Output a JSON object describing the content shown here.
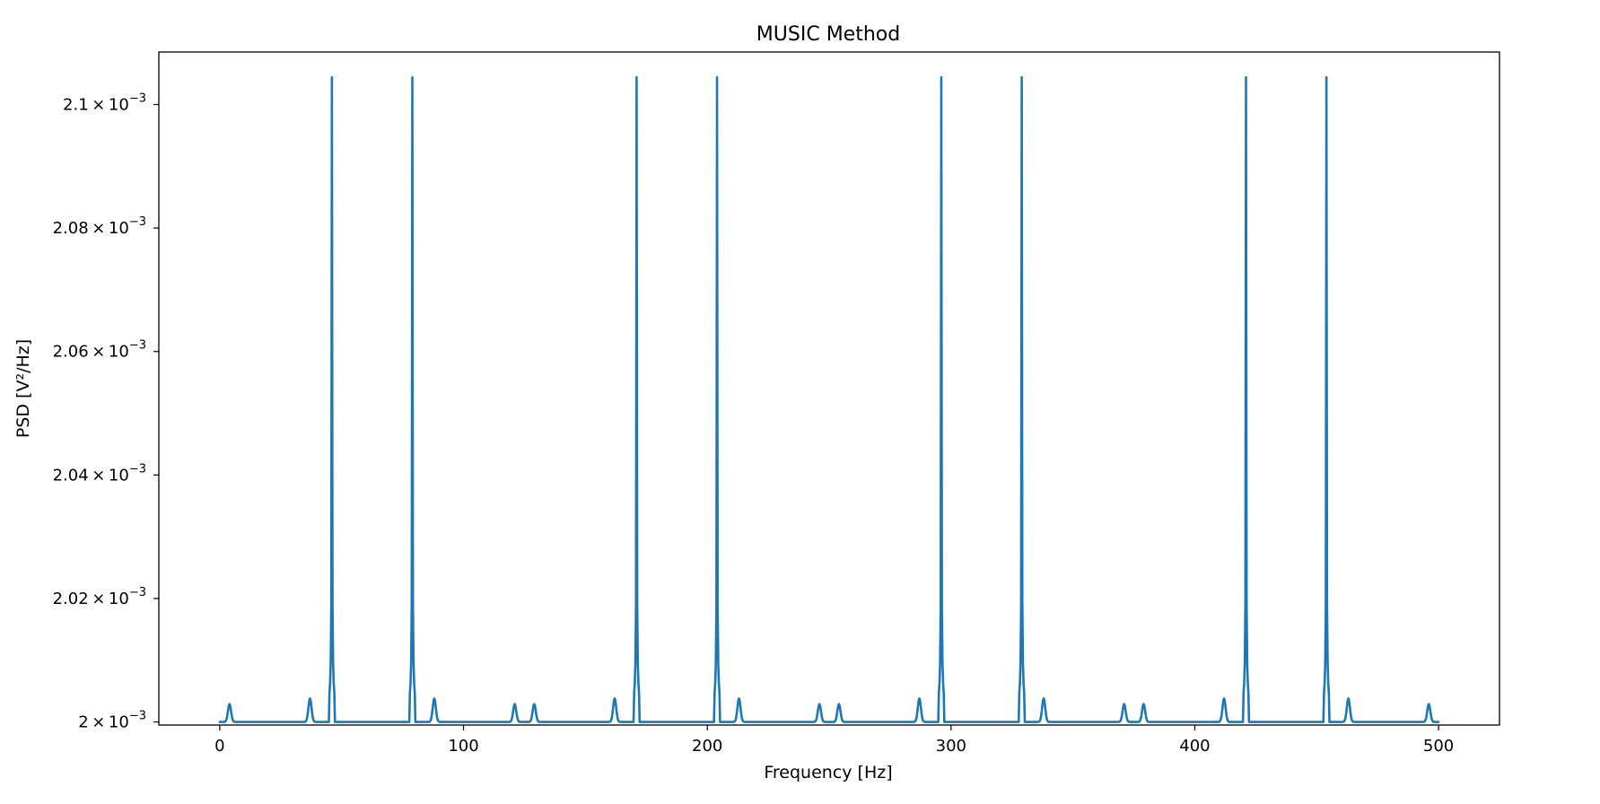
{
  "chart_data": {
    "type": "line",
    "title": "MUSIC Method",
    "xlabel": "Frequency [Hz]",
    "ylabel": "PSD [V²/Hz]",
    "xlim": [
      -25,
      525
    ],
    "ylim": [
      0.0019995,
      0.0021085
    ],
    "x_ticks": [
      0,
      100,
      200,
      300,
      400,
      500
    ],
    "x_tick_labels": [
      "0",
      "100",
      "200",
      "300",
      "400",
      "500"
    ],
    "y_ticks": [
      0.002,
      0.00202,
      0.00204,
      0.00206,
      0.00208,
      0.0021
    ],
    "y_tick_labels": [
      {
        "mantissa": "2",
        "exp": "−3"
      },
      {
        "mantissa": "2.02",
        "exp": "−3"
      },
      {
        "mantissa": "2.04",
        "exp": "−3"
      },
      {
        "mantissa": "2.06",
        "exp": "−3"
      },
      {
        "mantissa": "2.08",
        "exp": "−3"
      },
      {
        "mantissa": "2.1",
        "exp": "−3"
      }
    ],
    "grid": false,
    "line_color": "#1f77b4",
    "x_range": [
      0,
      500
    ],
    "baseline": 0.002,
    "series": [
      {
        "major_peaks": [
          {
            "x": 46,
            "y": 0.0021044
          },
          {
            "x": 79,
            "y": 0.0021044
          },
          {
            "x": 171,
            "y": 0.0021044
          },
          {
            "x": 204,
            "y": 0.0021044
          },
          {
            "x": 296,
            "y": 0.0021044
          },
          {
            "x": 329,
            "y": 0.0021044
          },
          {
            "x": 421,
            "y": 0.0021044
          },
          {
            "x": 454,
            "y": 0.0021044
          }
        ],
        "minor_peaks": [
          {
            "x": 4,
            "y": 0.0020029
          },
          {
            "x": 37,
            "y": 0.0020038
          },
          {
            "x": 88,
            "y": 0.0020038
          },
          {
            "x": 121,
            "y": 0.0020029
          },
          {
            "x": 129,
            "y": 0.0020029
          },
          {
            "x": 162,
            "y": 0.0020038
          },
          {
            "x": 213,
            "y": 0.0020038
          },
          {
            "x": 246,
            "y": 0.0020029
          },
          {
            "x": 254,
            "y": 0.0020029
          },
          {
            "x": 287,
            "y": 0.0020038
          },
          {
            "x": 338,
            "y": 0.0020038
          },
          {
            "x": 371,
            "y": 0.0020029
          },
          {
            "x": 379,
            "y": 0.0020029
          },
          {
            "x": 412,
            "y": 0.0020038
          },
          {
            "x": 463,
            "y": 0.0020038
          },
          {
            "x": 496,
            "y": 0.0020029
          }
        ]
      }
    ]
  }
}
